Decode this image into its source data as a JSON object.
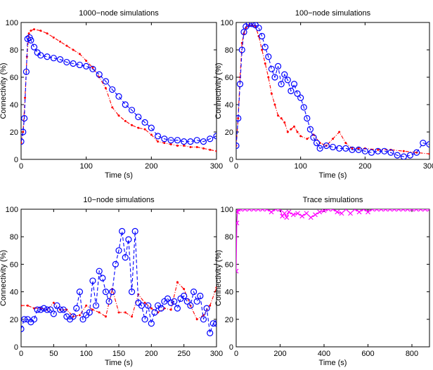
{
  "chart_data": [
    {
      "type": "line",
      "title": "1000−node simulations",
      "xlabel": "Time (s)",
      "ylabel": "Connectivity (%)",
      "xlim": [
        0,
        300
      ],
      "ylim": [
        0,
        100
      ],
      "xticks": [
        "0",
        "100",
        "200",
        "300"
      ],
      "yticks": [
        "0",
        "20",
        "40",
        "60",
        "80",
        "100"
      ],
      "series": [
        {
          "color": "#ff0000",
          "marker": "dot",
          "style": "dashdot",
          "x": [
            0,
            3,
            6,
            9,
            12,
            15,
            20,
            30,
            40,
            50,
            60,
            70,
            80,
            90,
            100,
            110,
            120,
            130,
            140,
            150,
            160,
            170,
            180,
            190,
            200,
            210,
            220,
            230,
            240,
            250,
            260,
            270,
            280,
            290,
            300
          ],
          "y": [
            12,
            20,
            45,
            75,
            92,
            94,
            95,
            94,
            92,
            89,
            86,
            83,
            80,
            77,
            72,
            67,
            60,
            52,
            38,
            32,
            28,
            25,
            23,
            22,
            18,
            13,
            12,
            11,
            10,
            10,
            9,
            9,
            8,
            7,
            6
          ]
        },
        {
          "color": "#0000ff",
          "marker": "circle",
          "style": "dashed",
          "x": [
            0,
            3,
            5,
            8,
            10,
            13,
            15,
            20,
            25,
            30,
            40,
            50,
            60,
            70,
            80,
            90,
            100,
            110,
            120,
            130,
            140,
            150,
            160,
            170,
            180,
            190,
            200,
            210,
            220,
            230,
            240,
            250,
            260,
            270,
            280,
            290,
            300
          ],
          "y": [
            13,
            20,
            30,
            64,
            88,
            89,
            87,
            82,
            78,
            76,
            75,
            74,
            73,
            71,
            70,
            69,
            68,
            66,
            62,
            57,
            51,
            46,
            40,
            36,
            31,
            27,
            23,
            17,
            15,
            14,
            14,
            13,
            13,
            14,
            13,
            15,
            17
          ]
        }
      ]
    },
    {
      "type": "line",
      "title": "100−node simulations",
      "xlabel": "Time (s)",
      "ylabel": "Connectivity (%)",
      "xlim": [
        0,
        300
      ],
      "ylim": [
        0,
        100
      ],
      "xticks": [
        "0",
        "100",
        "200",
        "300"
      ],
      "yticks": [
        "0",
        "20",
        "40",
        "60",
        "80",
        "100"
      ],
      "series": [
        {
          "color": "#ff0000",
          "marker": "dot",
          "style": "dashdot",
          "x": [
            0,
            3,
            6,
            9,
            12,
            15,
            20,
            25,
            30,
            35,
            40,
            45,
            50,
            55,
            60,
            65,
            70,
            75,
            80,
            85,
            90,
            95,
            100,
            110,
            120,
            130,
            140,
            150,
            160,
            170,
            180,
            190,
            200,
            220,
            240,
            260,
            280,
            300
          ],
          "y": [
            10,
            30,
            60,
            85,
            92,
            96,
            98,
            98,
            97,
            90,
            80,
            70,
            60,
            48,
            40,
            32,
            30,
            27,
            20,
            22,
            24,
            20,
            17,
            15,
            18,
            12,
            10,
            15,
            20,
            12,
            8,
            8,
            8,
            7,
            7,
            6,
            5,
            4
          ]
        },
        {
          "color": "#0000ff",
          "marker": "circle",
          "style": "dashed",
          "x": [
            0,
            3,
            6,
            9,
            12,
            15,
            20,
            25,
            30,
            35,
            40,
            45,
            50,
            55,
            60,
            65,
            70,
            75,
            80,
            85,
            90,
            95,
            100,
            105,
            110,
            115,
            120,
            125,
            130,
            140,
            150,
            160,
            170,
            180,
            190,
            200,
            210,
            220,
            230,
            240,
            250,
            260,
            270,
            280,
            290,
            300
          ],
          "y": [
            10,
            30,
            55,
            80,
            93,
            97,
            99,
            99,
            98,
            96,
            90,
            82,
            75,
            66,
            60,
            68,
            55,
            62,
            58,
            50,
            55,
            48,
            45,
            38,
            30,
            22,
            16,
            12,
            8,
            10,
            9,
            8,
            8,
            7,
            7,
            6,
            5,
            6,
            6,
            5,
            3,
            2,
            3,
            5,
            12,
            11
          ]
        }
      ]
    },
    {
      "type": "line",
      "title": "10−node simulations",
      "xlabel": "Time (s)",
      "ylabel": "Connectivity (%)",
      "xlim": [
        0,
        300
      ],
      "ylim": [
        0,
        100
      ],
      "xticks": [
        "0",
        "50",
        "100",
        "150",
        "200",
        "250",
        "300"
      ],
      "yticks": [
        "0",
        "20",
        "40",
        "60",
        "80",
        "100"
      ],
      "series": [
        {
          "color": "#ff0000",
          "marker": "dot",
          "style": "dashdot",
          "x": [
            0,
            10,
            20,
            30,
            40,
            50,
            60,
            70,
            80,
            90,
            100,
            110,
            120,
            130,
            140,
            150,
            160,
            170,
            180,
            190,
            200,
            210,
            220,
            230,
            240,
            250,
            260,
            270,
            280,
            290,
            300
          ],
          "y": [
            30,
            30,
            28,
            28,
            27,
            32,
            27,
            27,
            22,
            23,
            30,
            27,
            25,
            22,
            42,
            25,
            25,
            22,
            38,
            32,
            28,
            25,
            28,
            27,
            47,
            42,
            30,
            20,
            23,
            30,
            43
          ]
        },
        {
          "color": "#0000ff",
          "marker": "circle",
          "style": "dashed",
          "x": [
            0,
            5,
            10,
            15,
            20,
            25,
            30,
            35,
            40,
            45,
            50,
            55,
            60,
            65,
            70,
            75,
            80,
            85,
            90,
            95,
            100,
            105,
            110,
            115,
            120,
            125,
            130,
            135,
            140,
            145,
            150,
            155,
            160,
            165,
            170,
            175,
            180,
            185,
            190,
            195,
            200,
            205,
            210,
            215,
            220,
            225,
            230,
            235,
            240,
            245,
            250,
            255,
            260,
            265,
            270,
            275,
            280,
            285,
            290,
            295,
            300
          ],
          "y": [
            13,
            20,
            20,
            18,
            20,
            27,
            27,
            28,
            27,
            27,
            24,
            30,
            27,
            27,
            22,
            20,
            22,
            28,
            40,
            20,
            23,
            25,
            48,
            30,
            55,
            50,
            40,
            33,
            40,
            60,
            70,
            84,
            65,
            78,
            40,
            84,
            32,
            30,
            20,
            30,
            17,
            25,
            30,
            28,
            33,
            35,
            32,
            33,
            28,
            35,
            37,
            33,
            30,
            40,
            33,
            37,
            20,
            28,
            10,
            17,
            17
          ]
        }
      ]
    },
    {
      "type": "scatter",
      "title": "Trace simulations",
      "xlabel": "Time (s)",
      "ylabel": "Connectivity (%)",
      "xlim": [
        0,
        880
      ],
      "ylim": [
        0,
        100
      ],
      "xticks": [
        "0",
        "200",
        "400",
        "600",
        "800"
      ],
      "yticks": [
        "0",
        "20",
        "40",
        "60",
        "80",
        "100"
      ],
      "series": [
        {
          "color": "#ff00ff",
          "marker": "x",
          "style": "solid",
          "x": [
            0,
            3,
            6,
            10,
            20,
            40,
            60,
            80,
            100,
            120,
            140,
            160,
            180,
            200,
            210,
            220,
            230,
            240,
            260,
            280,
            300,
            320,
            340,
            360,
            380,
            400,
            420,
            440,
            460,
            480,
            500,
            520,
            540,
            560,
            580,
            600,
            620,
            640,
            660,
            680,
            700,
            720,
            740,
            760,
            780,
            800,
            820,
            840,
            860,
            880
          ],
          "y": [
            55,
            90,
            98,
            100,
            100,
            100,
            100,
            100,
            100,
            100,
            100,
            98,
            100,
            100,
            95,
            97,
            94,
            98,
            96,
            97,
            95,
            97,
            94,
            96,
            98,
            99,
            100,
            100,
            98,
            97,
            100,
            97,
            100,
            98,
            100,
            98,
            100,
            100,
            100,
            100,
            100,
            100,
            100,
            100,
            100,
            100,
            100,
            100,
            100,
            100
          ]
        }
      ]
    }
  ]
}
